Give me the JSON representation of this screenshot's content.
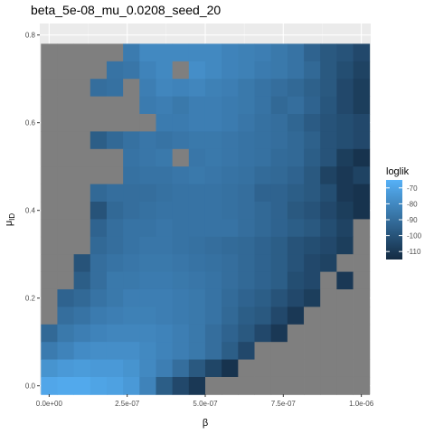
{
  "chart_data": {
    "type": "heatmap",
    "title": "beta_5e-08_mu_0.0208_seed_20",
    "xlabel": "β",
    "ylabel": "μ_ID",
    "ylabel_main": "μ",
    "ylabel_sub": "ID",
    "x_ticks": [
      0,
      2.5e-07,
      5e-07,
      7.5e-07,
      1e-06
    ],
    "x_tick_labels": [
      "0.0e+00",
      "2.5e-07",
      "5.0e-07",
      "7.5e-07",
      "1.0e-06"
    ],
    "y_ticks": [
      0,
      0.2,
      0.4,
      0.6,
      0.8
    ],
    "y_tick_labels": [
      "0.0",
      "0.2",
      "0.4",
      "0.6",
      "0.8"
    ],
    "xlim": [
      -3e-08,
      1.03e-06
    ],
    "ylim": [
      -0.0192,
      0.8262
    ],
    "x_start": 0,
    "x_step": 5.263e-08,
    "x_count": 20,
    "y_start": 0,
    "y_step": 0.04,
    "y_count": 20,
    "background_color": "#ebebeb",
    "na_color": "#7f7f7f",
    "grid": true,
    "legend": {
      "title": "loglik",
      "position": "right",
      "breaks": [
        -70,
        -80,
        -90,
        -100,
        -110
      ],
      "labels": [
        "-70",
        "-80",
        "-90",
        "-100",
        "-110"
      ],
      "min": -115,
      "max": -65,
      "color_low": "#132b43",
      "color_high": "#56b1f7"
    },
    "z_rows_top_to_bottom": [
      [
        null,
        null,
        null,
        null,
        null,
        -85,
        -80,
        -80,
        -80,
        -80,
        -80,
        -82,
        -83,
        -84,
        -86,
        -88,
        -94,
        -98,
        -100,
        -104
      ],
      [
        null,
        null,
        null,
        null,
        -88,
        -87,
        -82,
        -80,
        null,
        -78,
        -80,
        -82,
        -83,
        -85,
        -86,
        -88,
        -92,
        -98,
        -102,
        -106
      ],
      [
        null,
        null,
        null,
        -90,
        -89,
        null,
        -84,
        -81,
        -82,
        -81,
        -83,
        -84,
        -86,
        -88,
        -90,
        -92,
        -95,
        -98,
        -104,
        -108
      ],
      [
        null,
        null,
        null,
        null,
        null,
        null,
        -85,
        -84,
        -86,
        -84,
        -84,
        -85,
        -86,
        -88,
        -92,
        -90,
        -94,
        -99,
        -104,
        -108
      ],
      [
        null,
        null,
        null,
        null,
        null,
        null,
        null,
        -85,
        -85,
        -84,
        -84,
        -85,
        -87,
        -89,
        -90,
        -93,
        -97,
        -100,
        -102,
        -104
      ],
      [
        null,
        null,
        null,
        -96,
        -92,
        -89,
        -87,
        -88,
        -87,
        -86,
        -86,
        -87,
        -88,
        -89,
        -90,
        -92,
        -95,
        -100,
        -102,
        -104
      ],
      [
        null,
        null,
        null,
        null,
        null,
        -88,
        -87,
        -86,
        null,
        -87,
        -86,
        -87,
        -88,
        -89,
        -91,
        -92,
        -96,
        -100,
        -108,
        -112
      ],
      [
        null,
        null,
        null,
        null,
        null,
        -89,
        -88,
        -88,
        -87,
        -86,
        -87,
        -88,
        -89,
        -91,
        -92,
        -94,
        -98,
        -106,
        -110,
        -106
      ],
      [
        null,
        null,
        null,
        -92,
        -90,
        -90,
        -90,
        -89,
        -88,
        -88,
        -88,
        -89,
        -90,
        -94,
        -94,
        -96,
        -98,
        -102,
        -110,
        -112
      ],
      [
        null,
        null,
        null,
        -100,
        -92,
        -90,
        -89,
        -88,
        -88,
        -88,
        -88,
        -89,
        -90,
        -92,
        -94,
        -98,
        -100,
        -104,
        -108,
        -112
      ],
      [
        null,
        null,
        null,
        -94,
        -90,
        -88,
        -88,
        -87,
        -88,
        -88,
        -88,
        -88,
        -90,
        -92,
        -94,
        -96,
        -98,
        -102,
        -106,
        null
      ],
      [
        null,
        null,
        null,
        -92,
        -90,
        -88,
        -87,
        -87,
        -88,
        -89,
        -90,
        -91,
        -92,
        -94,
        -96,
        -100,
        -102,
        -104,
        -108,
        null
      ],
      [
        null,
        null,
        -100,
        -90,
        -88,
        -87,
        -86,
        -86,
        -87,
        -88,
        -89,
        -90,
        -92,
        -94,
        -96,
        -100,
        -104,
        -106,
        null,
        null
      ],
      [
        null,
        null,
        -96,
        -90,
        -86,
        -86,
        -85,
        -85,
        -86,
        -87,
        -88,
        -90,
        -92,
        -94,
        -96,
        -102,
        -104,
        null,
        -110,
        null
      ],
      [
        null,
        -94,
        -92,
        -88,
        -86,
        -84,
        -84,
        -84,
        -85,
        -86,
        -88,
        -91,
        -94,
        -96,
        -100,
        -104,
        -108,
        null,
        null,
        null
      ],
      [
        null,
        -90,
        -88,
        -85,
        -84,
        -83,
        -83,
        -84,
        -85,
        -86,
        -88,
        -92,
        -96,
        -98,
        -104,
        -110,
        null,
        null,
        null,
        null
      ],
      [
        -92,
        -86,
        -84,
        -82,
        -81,
        -81,
        -81,
        -82,
        -84,
        -86,
        -90,
        -94,
        -98,
        -104,
        -110,
        null,
        null,
        null,
        null,
        null
      ],
      [
        -85,
        -82,
        -79,
        -78,
        -78,
        -78,
        -80,
        -82,
        -84,
        -86,
        -90,
        -96,
        -104,
        null,
        null,
        null,
        null,
        null,
        null,
        null
      ],
      [
        -76,
        -74,
        -73,
        -74,
        -74,
        -76,
        -80,
        -84,
        -90,
        -98,
        -105,
        -112,
        null,
        null,
        null,
        null,
        null,
        null,
        null,
        null
      ],
      [
        -69,
        -68,
        -68,
        -70,
        -71,
        -74,
        -82,
        -96,
        -104,
        -110,
        null,
        null,
        null,
        null,
        null,
        null,
        null,
        null,
        null,
        null
      ]
    ]
  }
}
